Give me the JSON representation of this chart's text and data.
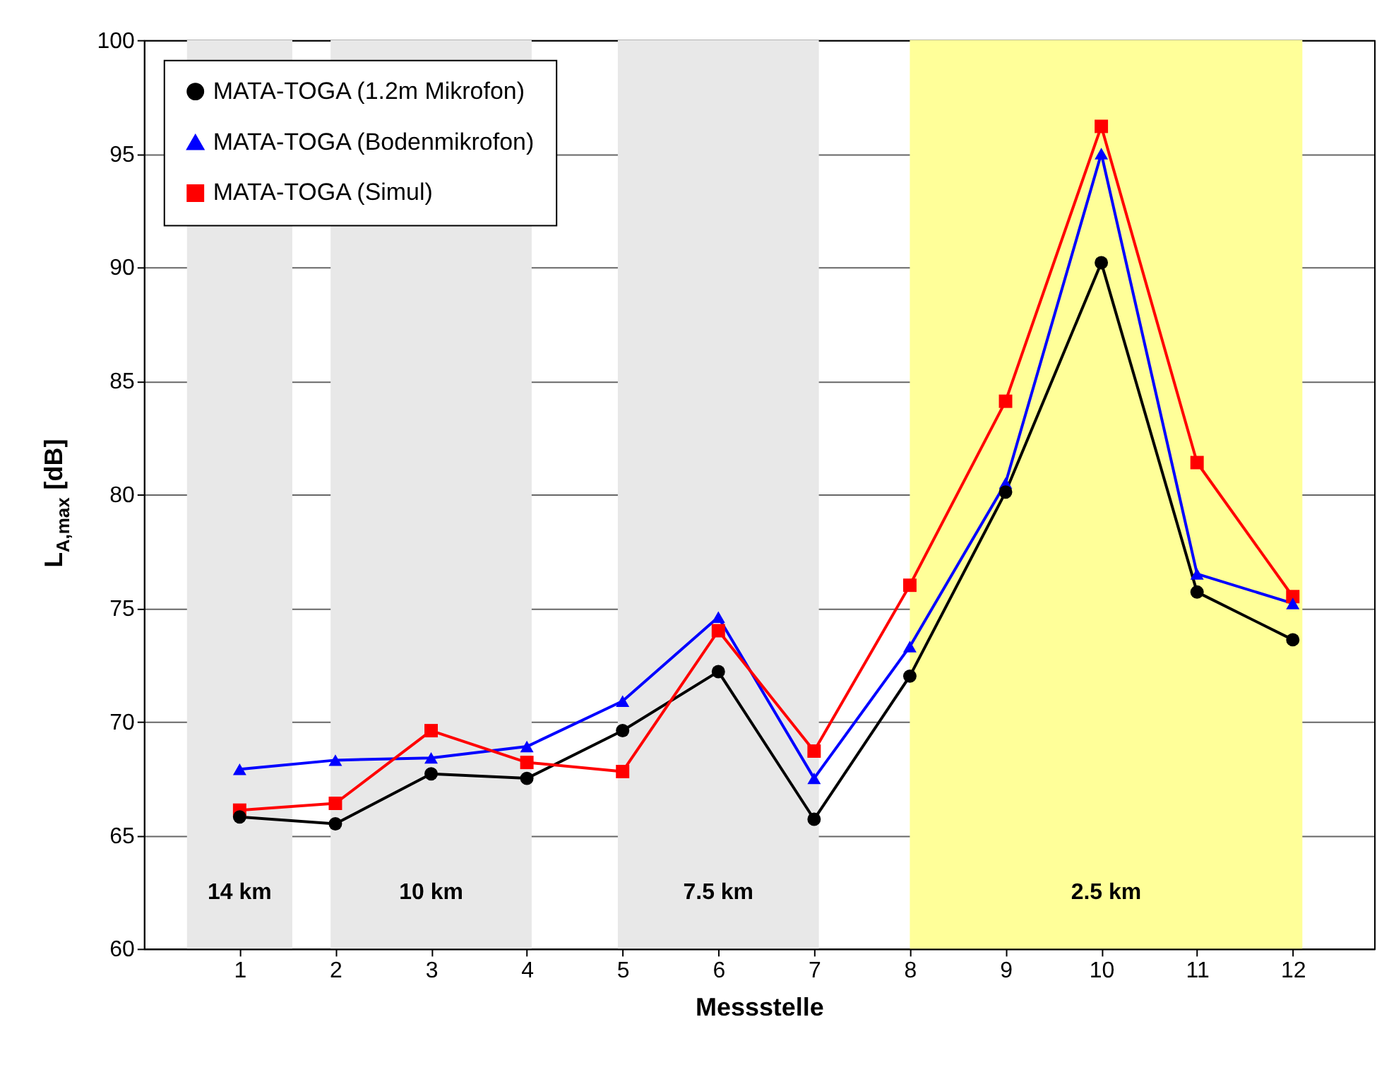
{
  "chart_data": {
    "type": "line",
    "xlabel": "Messstelle",
    "ylabel": "L$_{A,max}$ [dB]",
    "x": [
      1,
      2,
      3,
      4,
      5,
      6,
      7,
      8,
      9,
      10,
      11,
      12
    ],
    "series": [
      {
        "name": "MATA-TOGA  (1.2m Mikrofon)",
        "color": "#000000",
        "marker": "circle",
        "values": [
          65.8,
          65.5,
          67.7,
          67.5,
          69.6,
          72.2,
          65.7,
          72.0,
          80.1,
          90.2,
          75.7,
          73.6
        ]
      },
      {
        "name": "MATA-TOGA (Bodenmikrofon)",
        "color": "#0000ff",
        "marker": "triangle",
        "values": [
          67.9,
          68.3,
          68.4,
          68.9,
          70.9,
          74.6,
          67.5,
          73.3,
          80.5,
          95.0,
          76.5,
          75.2
        ]
      },
      {
        "name": "MATA-TOGA (Simul)",
        "color": "#ff0000",
        "marker": "square",
        "values": [
          66.1,
          66.4,
          69.6,
          68.2,
          67.8,
          74.0,
          68.7,
          76.0,
          84.1,
          96.2,
          81.4,
          75.5
        ]
      }
    ],
    "xlim": [
      0,
      12.85
    ],
    "xticks": [
      {
        "value": 1,
        "label": "1"
      },
      {
        "value": 2,
        "label": "2"
      },
      {
        "value": 3,
        "label": "3"
      },
      {
        "value": 4,
        "label": "4"
      },
      {
        "value": 5,
        "label": "5"
      },
      {
        "value": 6,
        "label": "6"
      },
      {
        "value": 7,
        "label": "7"
      },
      {
        "value": 8,
        "label": "8"
      },
      {
        "value": 9,
        "label": "9"
      },
      {
        "value": 10,
        "label": "10"
      },
      {
        "value": 11,
        "label": "11"
      },
      {
        "value": 12,
        "label": "12"
      }
    ],
    "ylim": [
      60,
      100
    ],
    "yticks": [
      60,
      65,
      70,
      75,
      80,
      85,
      90,
      95,
      100
    ],
    "bands": [
      {
        "axis": "x",
        "from": 0.45,
        "to": 1.55,
        "label": "14 km",
        "color": "#e8e8e8"
      },
      {
        "axis": "x",
        "from": 1.95,
        "to": 4.05,
        "label": "10 km",
        "color": "#e8e8e8"
      },
      {
        "axis": "x",
        "from": 4.95,
        "to": 7.05,
        "label": "7.5 km",
        "color": "#e8e8e8"
      },
      {
        "axis": "x",
        "from": 8.0,
        "to": 12.1,
        "label": "2.5 km",
        "color": "#ffff99"
      }
    ],
    "grid": "y",
    "legend": "top left",
    "line_style": "solid"
  }
}
